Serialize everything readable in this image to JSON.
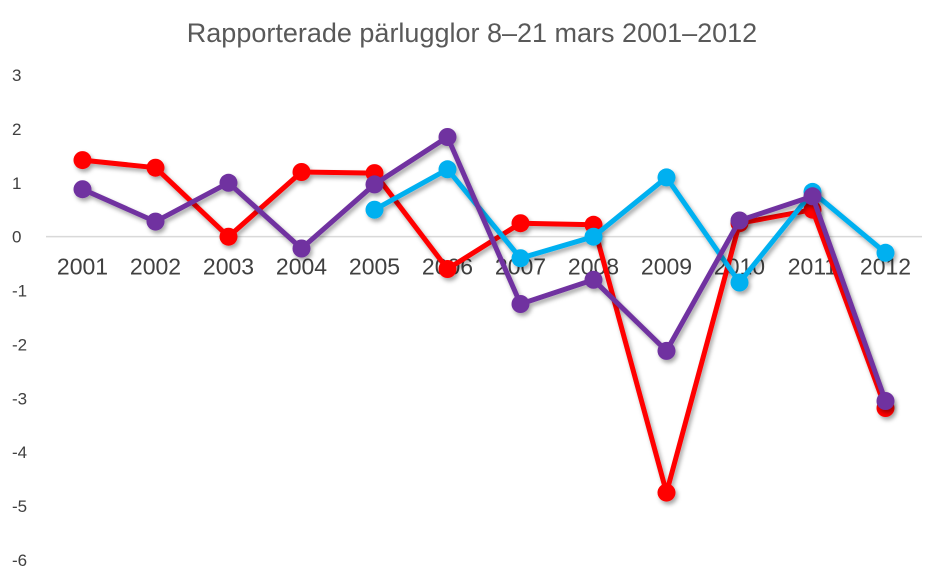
{
  "chart_data": {
    "type": "line",
    "title": "Rapporterade pärlugglor 8–21 mars 2001–2012",
    "xlabel": "",
    "ylabel": "",
    "ylim": [
      -6,
      3
    ],
    "yticks": [
      "3",
      "2",
      "1",
      "0",
      "-1",
      "-2",
      "-3",
      "-4",
      "-5",
      "-6"
    ],
    "categories": [
      "2001",
      "2002",
      "2003",
      "2004",
      "2005",
      "2006",
      "2007",
      "2008",
      "2009",
      "2010",
      "2011",
      "2012"
    ],
    "grid": false,
    "legend": "none",
    "series": [
      {
        "color": "#ff0000",
        "values": [
          1.42,
          1.28,
          0.0,
          1.2,
          1.18,
          -0.6,
          0.25,
          0.22,
          -4.75,
          0.25,
          0.5,
          -3.18
        ]
      },
      {
        "color": "#00b0f0",
        "values": [
          null,
          null,
          null,
          null,
          0.5,
          1.25,
          -0.4,
          0.0,
          1.1,
          -0.85,
          0.83,
          -0.3
        ]
      },
      {
        "color": "#7030a0",
        "values": [
          0.88,
          0.28,
          1.0,
          -0.22,
          0.97,
          1.85,
          -1.25,
          -0.8,
          -2.12,
          0.3,
          0.75,
          -3.05
        ]
      }
    ]
  }
}
